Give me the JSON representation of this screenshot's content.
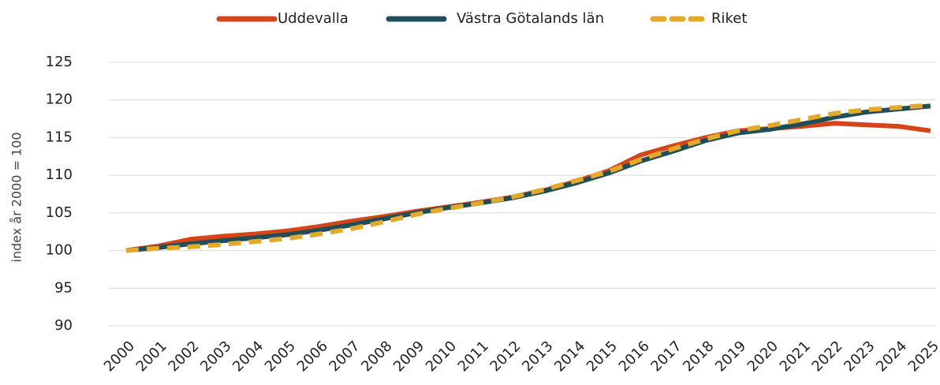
{
  "chart_data": {
    "type": "line",
    "y_label": "index år 2000 = 100",
    "categories": [
      "2000",
      "2001",
      "2002",
      "2003",
      "2004",
      "2005",
      "2006",
      "2007",
      "2008",
      "2009",
      "2010",
      "2011",
      "2012",
      "2013",
      "2014",
      "2015",
      "2016",
      "2017",
      "2018",
      "2019",
      "2020",
      "2021",
      "2022",
      "2023",
      "2024",
      "2025"
    ],
    "series": [
      {
        "name": "Uddevalla",
        "color": "#d4451a",
        "dashed": false,
        "values": [
          100,
          100.6,
          101.5,
          101.9,
          102.2,
          102.6,
          103.2,
          103.9,
          104.5,
          105.2,
          105.8,
          106.4,
          107.1,
          108.0,
          109.2,
          110.6,
          112.7,
          113.9,
          115.0,
          115.9,
          116.2,
          116.5,
          116.9,
          116.7,
          116.5,
          115.9
        ]
      },
      {
        "name": "Västra Götalands län",
        "color": "#1f4e5a",
        "dashed": false,
        "values": [
          100,
          100.4,
          100.9,
          101.3,
          101.7,
          102.1,
          102.7,
          103.4,
          104.2,
          105.0,
          105.7,
          106.3,
          107.0,
          107.9,
          109.0,
          110.3,
          111.9,
          113.2,
          114.6,
          115.6,
          116.1,
          116.8,
          117.7,
          118.4,
          118.8,
          119.2
        ]
      },
      {
        "name": "Riket",
        "color": "#e3a92a",
        "dashed": true,
        "values": [
          100,
          100.3,
          100.5,
          100.8,
          101.2,
          101.6,
          102.2,
          102.9,
          103.8,
          104.8,
          105.6,
          106.3,
          107.1,
          108.1,
          109.3,
          110.5,
          112.1,
          113.5,
          114.8,
          115.9,
          116.6,
          117.4,
          118.2,
          118.7,
          119.0,
          119.3
        ]
      }
    ],
    "ylim": [
      90,
      125
    ],
    "yticks": [
      90,
      95,
      100,
      105,
      110,
      115,
      120,
      125
    ],
    "grid": true,
    "legend": "top"
  }
}
